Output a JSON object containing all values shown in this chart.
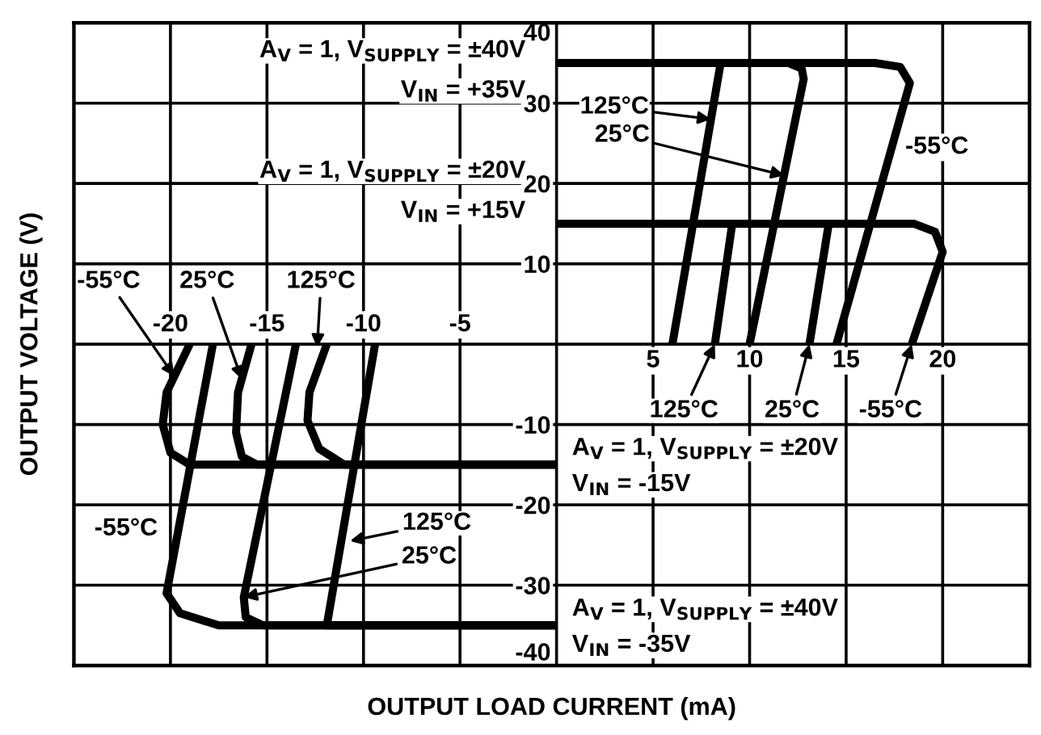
{
  "chart_data": {
    "type": "line",
    "xlabel": "OUTPUT LOAD CURRENT (mA)",
    "ylabel": "OUTPUT VOLTAGE (V)",
    "xlim": [
      -25,
      24.5
    ],
    "ylim": [
      -40,
      40
    ],
    "xticks": [
      {
        "value": 0,
        "label": null
      },
      5,
      10,
      15,
      20
    ],
    "x2lim": [
      -25,
      24.5
    ],
    "x2ticks": [
      -20,
      -15,
      -10,
      -5
    ],
    "yticks": [
      40,
      30,
      20,
      10,
      {
        "value": 0,
        "label": null
      },
      -10,
      -20,
      -30,
      -40
    ],
    "grid": true,
    "line_style": "solid",
    "marker": "none",
    "series": [
      {
        "color": "#000000",
        "x": [
          0,
          8.5,
          6.0
        ],
        "values": [
          35,
          35,
          0
        ]
      },
      {
        "color": "#000000",
        "x": [
          0,
          12.0,
          12.7,
          12.8,
          10.0
        ],
        "values": [
          35,
          35,
          34.3,
          33,
          0
        ]
      },
      {
        "color": "#000000",
        "x": [
          0,
          16.5,
          17.8,
          18.3,
          14.5
        ],
        "values": [
          35,
          35,
          34.5,
          32.5,
          0
        ]
      },
      {
        "color": "#000000",
        "x": [
          0,
          9.1,
          8.2
        ],
        "values": [
          15,
          15,
          0
        ]
      },
      {
        "color": "#000000",
        "x": [
          0,
          14.1,
          13.1
        ],
        "values": [
          15,
          15,
          0
        ]
      },
      {
        "color": "#000000",
        "x": [
          0,
          18.5,
          19.6,
          20.0,
          18.4
        ],
        "values": [
          15,
          15,
          14,
          11.5,
          0
        ]
      },
      {
        "color": "#000000",
        "x": [
          -19.0,
          -20.2,
          -20.4,
          -20.0,
          -19.0,
          0
        ],
        "values": [
          0,
          -6,
          -10,
          -13.5,
          -15,
          -15
        ]
      },
      {
        "color": "#000000",
        "x": [
          -15.8,
          -16.5,
          -16.6,
          -16.3,
          -15.5,
          0
        ],
        "values": [
          0,
          -6,
          -11,
          -14,
          -15,
          -15
        ]
      },
      {
        "color": "#000000",
        "x": [
          -11.9,
          -12.8,
          -12.9,
          -12.3,
          -11.0,
          0
        ],
        "values": [
          0,
          -6,
          -9.5,
          -13,
          -15,
          -15
        ]
      },
      {
        "color": "#000000",
        "x": [
          -17.8,
          -20.2,
          -19.5,
          -17.5,
          0
        ],
        "values": [
          0,
          -31,
          -33.5,
          -35,
          -35
        ]
      },
      {
        "color": "#000000",
        "x": [
          -13.5,
          -16.2,
          -16.1,
          -15.2,
          0
        ],
        "values": [
          0,
          -31.5,
          -34,
          -35,
          -35
        ]
      },
      {
        "color": "#000000",
        "x": [
          -9.4,
          -11.9,
          0
        ],
        "values": [
          0,
          -35,
          -35
        ]
      }
    ],
    "annotations": [
      "A$_{V}$ = 1, V$_{SUPPLY}$ = ±40V",
      "V$_{IN}$ = +35V",
      "A$_{V}$ = 1, V$_{SUPPLY}$ = ±20V",
      "V$_{IN}$ = +15V",
      "A$_{V}$ = 1, V$_{SUPPLY}$ = ±20V",
      "V$_{IN}$ = -15V",
      "A$_{V}$ = 1, V$_{SUPPLY}$ = ±40V",
      "V$_{IN}$ = -35V",
      {
        "text": "125°C",
        "x": 8.0,
        "y": 28
      },
      {
        "text": "25°C",
        "x": 11.8,
        "y": 21
      },
      {
        "text": "-55°C",
        "x": 19.7,
        "y": 24.5
      },
      {
        "text": "125°C",
        "x": 8.2,
        "y": 0
      },
      {
        "text": "25°C",
        "x": 13.1,
        "y": 0
      },
      {
        "text": "-55°C",
        "x": 18.4,
        "y": 0
      },
      {
        "text": "-55°C",
        "x": -19.8,
        "y": -4
      },
      {
        "text": "25°C",
        "x": -16.3,
        "y": -4.4
      },
      {
        "text": "125°C",
        "x": -12.4,
        "y": -0.4
      },
      {
        "text": "-55°C",
        "x": -22.3,
        "y": -23
      },
      {
        "text": "125°C",
        "x": -10.7,
        "y": -24.5
      },
      {
        "text": "25°C",
        "x": -16.2,
        "y": -31.5
      }
    ]
  }
}
